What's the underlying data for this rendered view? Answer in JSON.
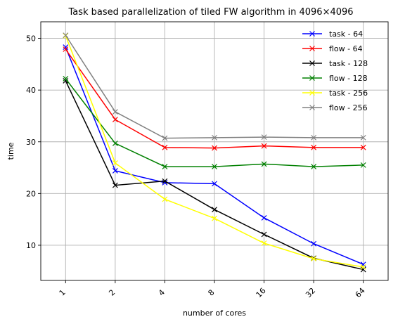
{
  "chart_data": {
    "type": "line",
    "title": "Task based parallelization of tiled FW algorithm in 4096×4096",
    "xlabel": "number of cores",
    "ylabel": "time",
    "categories": [
      "1",
      "2",
      "4",
      "8",
      "16",
      "32",
      "64"
    ],
    "ylim": [
      3.2,
      53.2
    ],
    "yticks": [
      10,
      20,
      30,
      40,
      50
    ],
    "grid": true,
    "legend_position": "top-right",
    "marker": "x",
    "series": [
      {
        "name": "task - 64",
        "color": "#0000ff",
        "values": [
          48.3,
          24.4,
          22.1,
          21.9,
          15.3,
          10.3,
          6.3
        ]
      },
      {
        "name": "flow - 64",
        "color": "#ff0000",
        "values": [
          47.9,
          34.3,
          28.9,
          28.8,
          29.2,
          28.9,
          28.9
        ]
      },
      {
        "name": "task - 128",
        "color": "#000000",
        "values": [
          41.8,
          21.6,
          22.4,
          16.9,
          12.1,
          7.5,
          5.3
        ]
      },
      {
        "name": "flow - 128",
        "color": "#008000",
        "values": [
          42.2,
          29.7,
          25.2,
          25.2,
          25.7,
          25.2,
          25.5
        ]
      },
      {
        "name": "task - 256",
        "color": "#ffff00",
        "values": [
          50.5,
          25.9,
          18.9,
          15.2,
          10.4,
          7.4,
          5.8
        ]
      },
      {
        "name": "flow - 256",
        "color": "#808080",
        "values": [
          50.6,
          35.8,
          30.7,
          30.8,
          30.9,
          30.8,
          30.8
        ]
      }
    ]
  }
}
